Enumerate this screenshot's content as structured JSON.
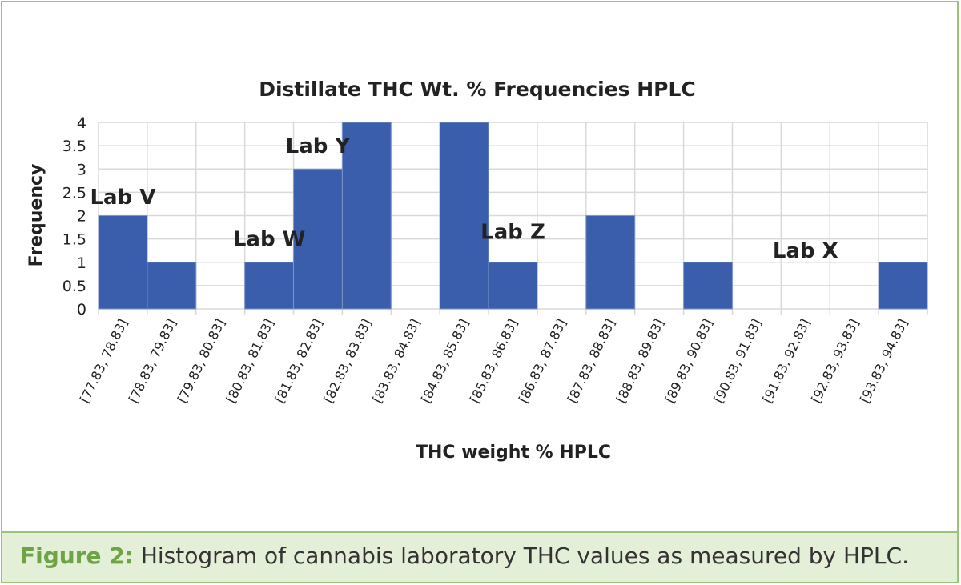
{
  "chart_data": {
    "type": "bar",
    "title": "Distillate THC Wt. % Frequencies HPLC",
    "xlabel": "THC weight % HPLC",
    "ylabel": "Frequency",
    "ylim": [
      0,
      4
    ],
    "yticks": [
      "0",
      "0.5",
      "1",
      "1.5",
      "2",
      "2.5",
      "3",
      "3.5",
      "4"
    ],
    "grid": true,
    "bar_color": "#3b5eac",
    "categories": [
      "[77.83, 78.83]",
      "[78.83, 79.83]",
      "[79.83, 80.83]",
      "[80.83, 81.83]",
      "[81.83, 82.83]",
      "[82.83, 83.83]",
      "[83.83, 84.83]",
      "[84.83, 85.83]",
      "[85.83, 86.83]",
      "[86.83, 87.83]",
      "[87.83, 88.83]",
      "[88.83, 89.83]",
      "[89.83, 90.83]",
      "[90.83, 91.83]",
      "[91.83, 92.83]",
      "[92.83, 93.83]",
      "[93.83, 94.83]"
    ],
    "values": [
      2,
      1,
      0,
      1,
      3,
      4,
      0,
      4,
      1,
      0,
      2,
      0,
      1,
      0,
      0,
      0,
      1
    ],
    "annotations": [
      {
        "text": "Lab V",
        "category_index": 0,
        "y": 2.25
      },
      {
        "text": "Lab W",
        "category_index": 3,
        "y": 1.35
      },
      {
        "text": "Lab Y",
        "category_index": 4,
        "y": 3.35
      },
      {
        "text": "Lab Z",
        "category_index": 8,
        "y": 1.5
      },
      {
        "text": "Lab X",
        "category_index": 14,
        "y": 1.1
      }
    ]
  },
  "caption": {
    "label": "Figure 2:",
    "text": " Histogram of cannabis laboratory THC values as measured by HPLC."
  },
  "colors": {
    "frame_border": "#9cc27a",
    "caption_background": "#e3efd6",
    "caption_label": "#6ea445"
  }
}
